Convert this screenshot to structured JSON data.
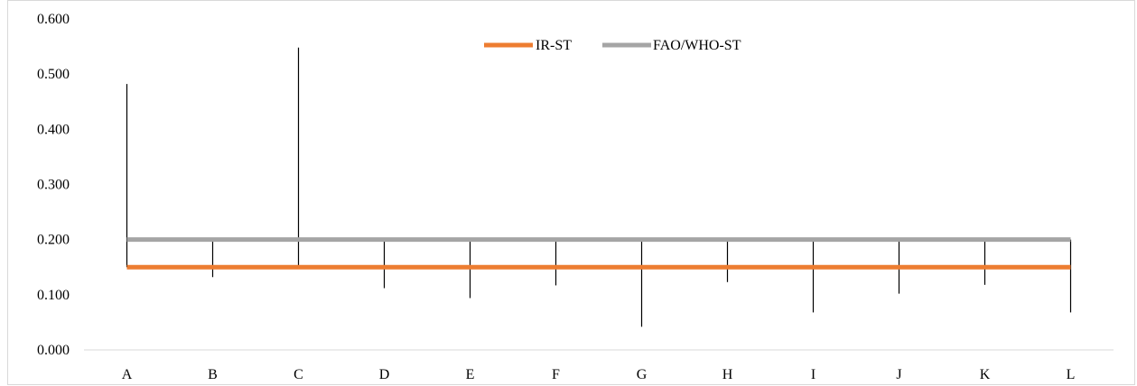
{
  "chart_data": {
    "type": "line",
    "title": "",
    "xlabel": "",
    "ylabel": "",
    "categories": [
      "A",
      "B",
      "C",
      "D",
      "E",
      "F",
      "G",
      "H",
      "I",
      "J",
      "K",
      "L"
    ],
    "ylim": [
      0,
      0.6
    ],
    "yticks": [
      "0.000",
      "0.100",
      "0.200",
      "0.300",
      "0.400",
      "0.500",
      "0.600"
    ],
    "grid": false,
    "legend_position": "top-center",
    "series": [
      {
        "name": "IR-ST",
        "color": "#ED7D31",
        "values": [
          0.15,
          0.15,
          0.15,
          0.15,
          0.15,
          0.15,
          0.15,
          0.15,
          0.15,
          0.15,
          0.15,
          0.15
        ]
      },
      {
        "name": "FAO/WHO-ST",
        "color": "#A5A5A5",
        "values": [
          0.2,
          0.2,
          0.2,
          0.2,
          0.2,
          0.2,
          0.2,
          0.2,
          0.2,
          0.2,
          0.2,
          0.2
        ]
      }
    ],
    "error_ranges": {
      "color": "#000000",
      "low": [
        0.15,
        0.132,
        0.15,
        0.112,
        0.094,
        0.117,
        0.042,
        0.123,
        0.068,
        0.102,
        0.118,
        0.068
      ],
      "high": [
        0.482,
        0.2,
        0.548,
        0.2,
        0.2,
        0.2,
        0.2,
        0.2,
        0.2,
        0.2,
        0.2,
        0.2
      ]
    }
  }
}
